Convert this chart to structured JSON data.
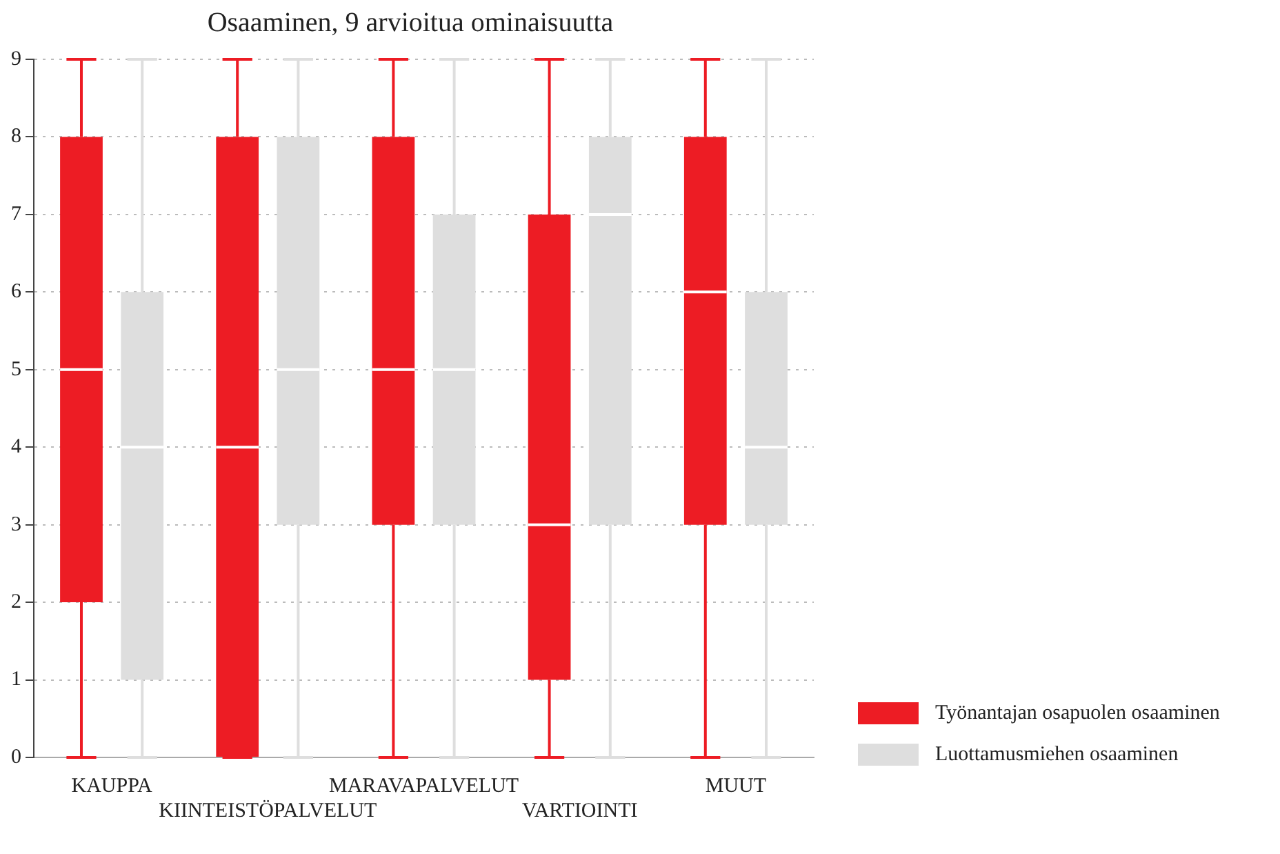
{
  "chart_data": {
    "type": "box",
    "title": "Osaaminen, 9 arvioitua ominaisuutta",
    "categories": [
      "KAUPPA",
      "KIINTEISTÖPALVELUT",
      "MARAVAPALVELUT",
      "VARTIOINTI",
      "MUUT"
    ],
    "series": [
      {
        "name": "Työnantajan osapuolen osaaminen",
        "color": "#ed1c24",
        "boxes": [
          {
            "low": 0,
            "q1": 2,
            "median": 5,
            "q3": 8,
            "high": 9
          },
          {
            "low": 0,
            "q1": 0,
            "median": 4,
            "q3": 8,
            "high": 9
          },
          {
            "low": 0,
            "q1": 3,
            "median": 5,
            "q3": 8,
            "high": 9
          },
          {
            "low": 0,
            "q1": 1,
            "median": 3,
            "q3": 7,
            "high": 9
          },
          {
            "low": 0,
            "q1": 3,
            "median": 6,
            "q3": 8,
            "high": 9
          }
        ]
      },
      {
        "name": "Luottamusmiehen osaaminen",
        "color": "#dedede",
        "boxes": [
          {
            "low": 0,
            "q1": 1,
            "median": 4,
            "q3": 6,
            "high": 9
          },
          {
            "low": 0,
            "q1": 3,
            "median": 5,
            "q3": 8,
            "high": 9
          },
          {
            "low": 0,
            "q1": 3,
            "median": 5,
            "q3": 7,
            "high": 9
          },
          {
            "low": 0,
            "q1": 3,
            "median": 7,
            "q3": 8,
            "high": 9
          },
          {
            "low": 0,
            "q1": 3,
            "median": 4,
            "q3": 6,
            "high": 9
          }
        ]
      }
    ],
    "ylim": [
      0,
      9
    ],
    "yticks": [
      0,
      1,
      2,
      3,
      4,
      5,
      6,
      7,
      8,
      9
    ],
    "grid": "y",
    "legend": "right"
  }
}
